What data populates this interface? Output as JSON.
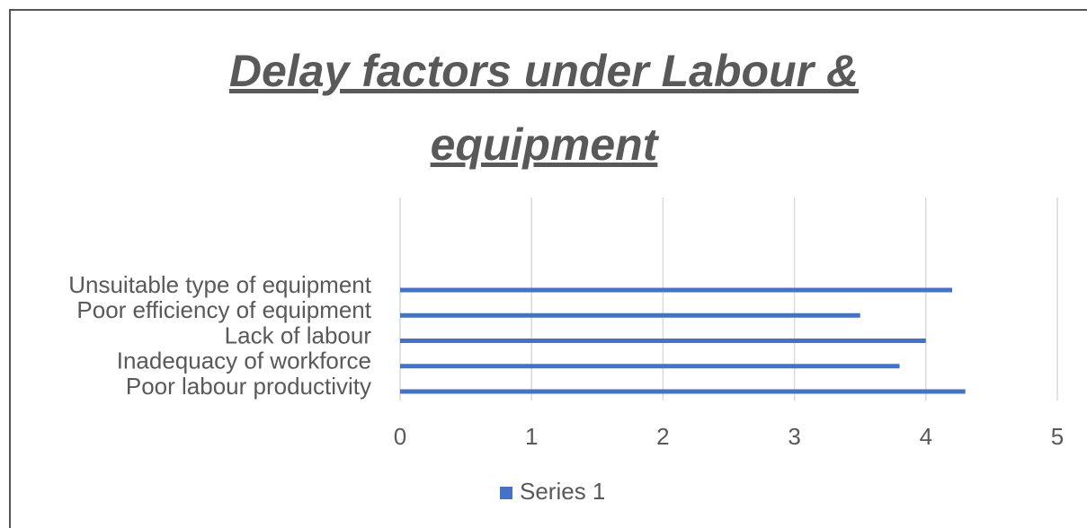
{
  "chart_data": {
    "type": "bar",
    "orientation": "horizontal",
    "title": "Delay factors under Labour & equipment",
    "categories": [
      "Poor labour productivity",
      "Inadequacy of workforce",
      "Lack of labour",
      "Poor efficiency of equipment",
      "Unsuitable type of equipment"
    ],
    "series": [
      {
        "name": "Series 1",
        "color": "#4472c4",
        "values": [
          4.3,
          3.8,
          4.0,
          3.5,
          4.2
        ]
      }
    ],
    "xlim": [
      0,
      5
    ],
    "xticks": [
      0,
      1,
      2,
      3,
      4,
      5
    ],
    "grid": true,
    "legend": "bottom"
  }
}
